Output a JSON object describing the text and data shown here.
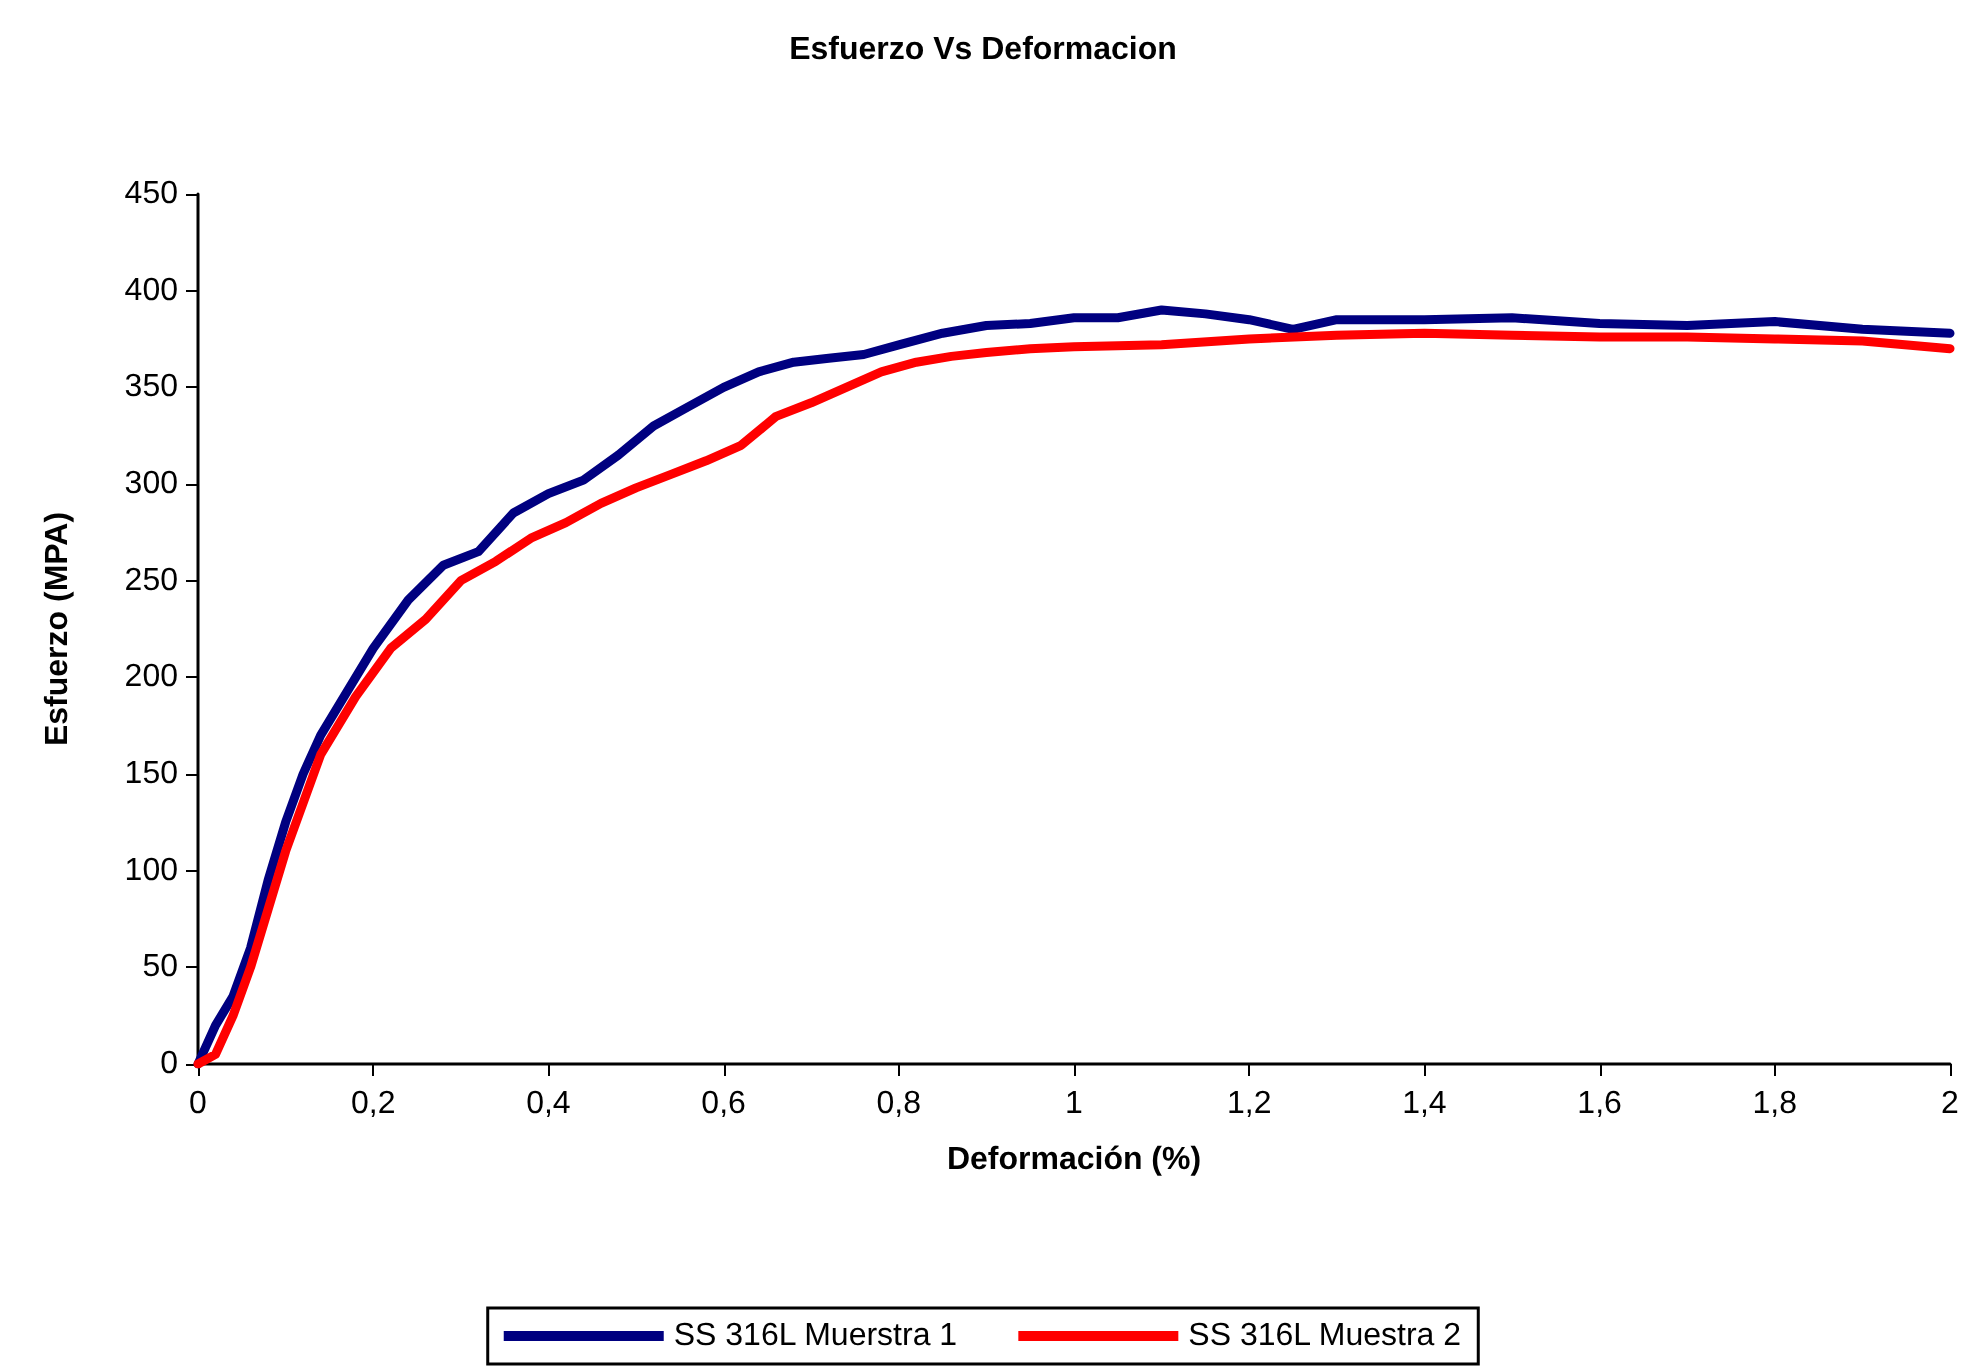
{
  "chart_data": {
    "type": "line",
    "title": "Esfuerzo Vs Deformacion",
    "xlabel": "Deformación (%)",
    "ylabel": "Esfuerzo (MPA)",
    "xlim": [
      0,
      2
    ],
    "xticks": [
      0,
      {
        "value": 0.2,
        "label": "0,2"
      },
      {
        "value": 0.4,
        "label": "0,4"
      },
      {
        "value": 0.6,
        "label": "0,6"
      },
      {
        "value": 0.8,
        "label": "0,8"
      },
      1,
      {
        "value": 1.2,
        "label": "1,2"
      },
      {
        "value": 1.4,
        "label": "1,4"
      },
      {
        "value": 1.6,
        "label": "1,6"
      },
      {
        "value": 1.8,
        "label": "1,8"
      },
      2
    ],
    "ylim": [
      0,
      450
    ],
    "yticks": [
      0,
      50,
      100,
      150,
      200,
      250,
      300,
      350,
      400,
      450
    ],
    "grid": false,
    "legend": "bottom",
    "marker": "none",
    "line_style": "solid",
    "series": [
      {
        "name": "SS 316L Muerstra 1",
        "color": "#000080",
        "x": [
          0,
          0.02,
          0.04,
          0.06,
          0.08,
          0.1,
          0.12,
          0.14,
          0.16,
          0.2,
          0.24,
          0.28,
          0.32,
          0.36,
          0.4,
          0.44,
          0.48,
          0.52,
          0.56,
          0.6,
          0.64,
          0.68,
          0.72,
          0.76,
          0.8,
          0.85,
          0.9,
          0.95,
          1,
          1.05,
          1.1,
          1.15,
          1.2,
          1.25,
          1.3,
          1.4,
          1.5,
          1.6,
          1.7,
          1.8,
          1.9,
          2
        ],
        "values": [
          0,
          20,
          35,
          60,
          95,
          125,
          150,
          170,
          185,
          215,
          240,
          258,
          265,
          285,
          295,
          302,
          315,
          330,
          340,
          350,
          358,
          363,
          365,
          367,
          372,
          378,
          382,
          383,
          386,
          386,
          390,
          388,
          385,
          380,
          385,
          385,
          386,
          383,
          382,
          384,
          380,
          378
        ]
      },
      {
        "name": "SS 316L Muestra 2",
        "color": "#ff0000",
        "x": [
          0,
          0.02,
          0.04,
          0.06,
          0.08,
          0.1,
          0.12,
          0.14,
          0.18,
          0.22,
          0.26,
          0.3,
          0.34,
          0.38,
          0.42,
          0.46,
          0.5,
          0.54,
          0.58,
          0.62,
          0.66,
          0.7,
          0.74,
          0.78,
          0.82,
          0.86,
          0.9,
          0.95,
          1,
          1.1,
          1.2,
          1.3,
          1.4,
          1.5,
          1.6,
          1.7,
          1.8,
          1.9,
          2
        ],
        "values": [
          0,
          5,
          25,
          50,
          80,
          110,
          135,
          160,
          190,
          215,
          230,
          250,
          260,
          272,
          280,
          290,
          298,
          305,
          312,
          320,
          335,
          342,
          350,
          358,
          363,
          366,
          368,
          370,
          371,
          372,
          375,
          377,
          378,
          377,
          376,
          376,
          375,
          374,
          370
        ]
      }
    ]
  }
}
